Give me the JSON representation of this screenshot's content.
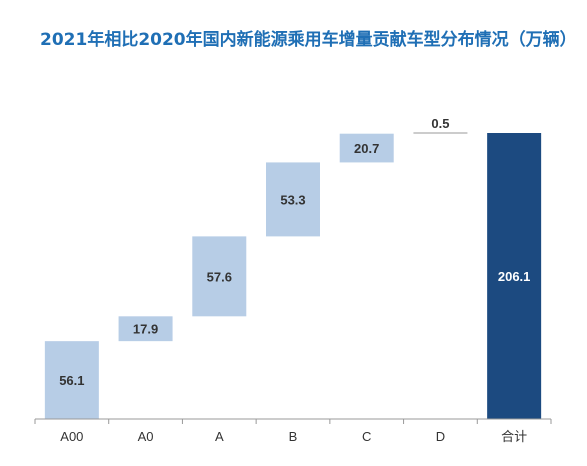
{
  "colors": {
    "title": "#1f6fb5",
    "bar": "#b7cde6",
    "total_bar": "#1c4a80",
    "label_dark": "#333333",
    "label_light": "#ffffff",
    "axis": "#999999"
  },
  "chart_data": {
    "type": "bar",
    "subtype": "waterfall",
    "title": "2021年相比2020年国内新能源乘用车增量贡献车型分布情况（万辆）",
    "xlabel": "",
    "ylabel": "",
    "categories": [
      "A00",
      "A0",
      "A",
      "B",
      "C",
      "D",
      "合计"
    ],
    "values": [
      56.1,
      17.9,
      57.6,
      53.3,
      20.7,
      0.5,
      206.1
    ],
    "value_labels": [
      "56.1",
      "17.9",
      "57.6",
      "53.3",
      "20.7",
      "0.5",
      "206.1"
    ],
    "is_total": [
      false,
      false,
      false,
      false,
      false,
      false,
      true
    ],
    "ylim": [
      0,
      206.1
    ],
    "grid": false,
    "legend": "none"
  }
}
